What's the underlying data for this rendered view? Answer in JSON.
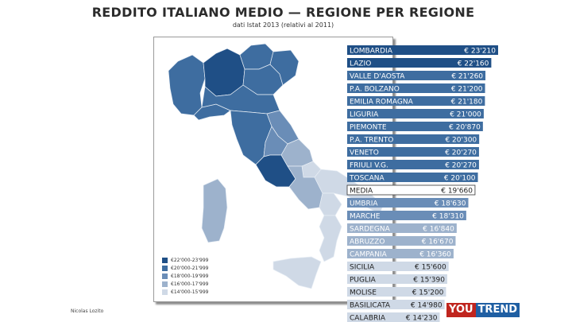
{
  "title": "REDDITO ITALIANO MEDIO — REGIONE PER REGIONE",
  "subtitle": "dati Istat 2013 (relativi al 2011)",
  "credit": "Nicolas Lozito",
  "logo": {
    "part1": "YOU",
    "part2": "TREND"
  },
  "legend": [
    {
      "label": "€22'000-23'999",
      "color": "#1f4f86"
    },
    {
      "label": "€20'000-21'999",
      "color": "#3e6da0"
    },
    {
      "label": "€18'000-19'999",
      "color": "#6a8db7"
    },
    {
      "label": "€16'000-17'999",
      "color": "#9db2cc"
    },
    {
      "label": "€14'000-15'999",
      "color": "#cfd9e6"
    }
  ],
  "colors": {
    "band1": "#1f4f86",
    "band2": "#3e6da0",
    "band3": "#6a8db7",
    "band4": "#9db2cc",
    "band5": "#cfd9e6",
    "media": "#ffffff",
    "logo_red": "#c0251e",
    "logo_blue": "#1f5fa3"
  },
  "chart_data": {
    "type": "bar",
    "title": "REDDITO ITALIANO MEDIO — REGIONE PER REGIONE",
    "subtitle": "dati Istat 2013 (relativi al 2011)",
    "categories": [
      "LOMBARDIA",
      "LAZIO",
      "VALLE D'AOSTA",
      "P.A. BOLZANO",
      "EMILIA ROMAGNA",
      "LIGURIA",
      "PIEMONTE",
      "P.A. TRENTO",
      "VENETO",
      "FRIULI V.G.",
      "TOSCANA",
      "MEDIA",
      "UMBRIA",
      "MARCHE",
      "SARDEGNA",
      "ABRUZZO",
      "CAMPANIA",
      "SICILIA",
      "PUGLIA",
      "MOLISE",
      "BASILICATA",
      "CALABRIA"
    ],
    "values": [
      23210,
      22160,
      21260,
      21200,
      21180,
      21000,
      20870,
      20300,
      20270,
      20270,
      20100,
      19660,
      18630,
      18310,
      16840,
      16670,
      16360,
      15600,
      15390,
      15200,
      14980,
      14230
    ],
    "value_labels": [
      "€ 23'210",
      "€ 22'160",
      "€ 21'260",
      "€ 21'200",
      "€ 21'180",
      "€ 21'000",
      "€ 20'870",
      "€ 20'300",
      "€ 20'270",
      "€ 20'270",
      "€ 20'100",
      "€ 19'660",
      "€ 18'630",
      "€ 18'310",
      "€ 16'840",
      "€ 16'670",
      "€ 16'360",
      "€ 15'600",
      "€ 15'390",
      "€ 15'200",
      "€ 14'980",
      "€ 14'230"
    ],
    "orientation": "horizontal",
    "sorted": "descending"
  }
}
